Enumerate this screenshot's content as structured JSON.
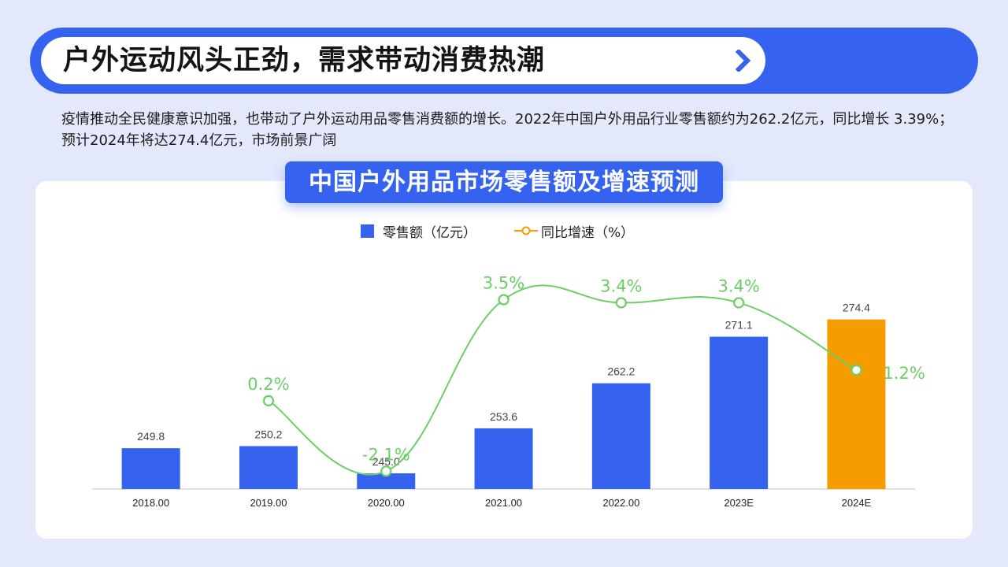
{
  "header": {
    "title": "户外运动风头正劲，需求带动消费热潮"
  },
  "description": "疫情推动全民健康意识加强，也带动了户外运动用品零售消费额的增长。2022年中国户外用品行业零售额约为262.2亿元，同比增长 3.39%；预计2024年将达274.4亿元，市场前景广阔",
  "colors": {
    "accent": "#3563f0",
    "forecast_bar": "#f59c00",
    "line": "#6ccf66",
    "line_marker": "#9ad88f"
  },
  "icons": {
    "banner_arrow": "chevron-right-icon"
  },
  "chart_data": {
    "type": "bar",
    "title": "中国户外用品市场零售额及增速预测",
    "categories": [
      "2018.00",
      "2019.00",
      "2020.00",
      "2021.00",
      "2022.00",
      "2023E",
      "2024E"
    ],
    "legend": [
      "零售额（亿元）",
      "同比增速（%）"
    ],
    "legend_position": "top",
    "grid": false,
    "series": [
      {
        "name": "零售额（亿元）",
        "type": "bar",
        "values": [
          249.8,
          250.2,
          245.0,
          253.6,
          262.2,
          271.1,
          274.4
        ],
        "labels": [
          "249.8",
          "250.2",
          "245.0",
          "253.6",
          "262.2",
          "271.1",
          "274.4"
        ],
        "highlight_index": 6
      },
      {
        "name": "同比增速（%）",
        "type": "line",
        "smooth": true,
        "values": [
          null,
          0.2,
          -2.1,
          3.5,
          3.4,
          3.4,
          1.2
        ],
        "labels": [
          null,
          "0.2%",
          "-2.1%",
          "3.5%",
          "3.4%",
          "3.4%",
          "1.2%"
        ]
      }
    ]
  }
}
